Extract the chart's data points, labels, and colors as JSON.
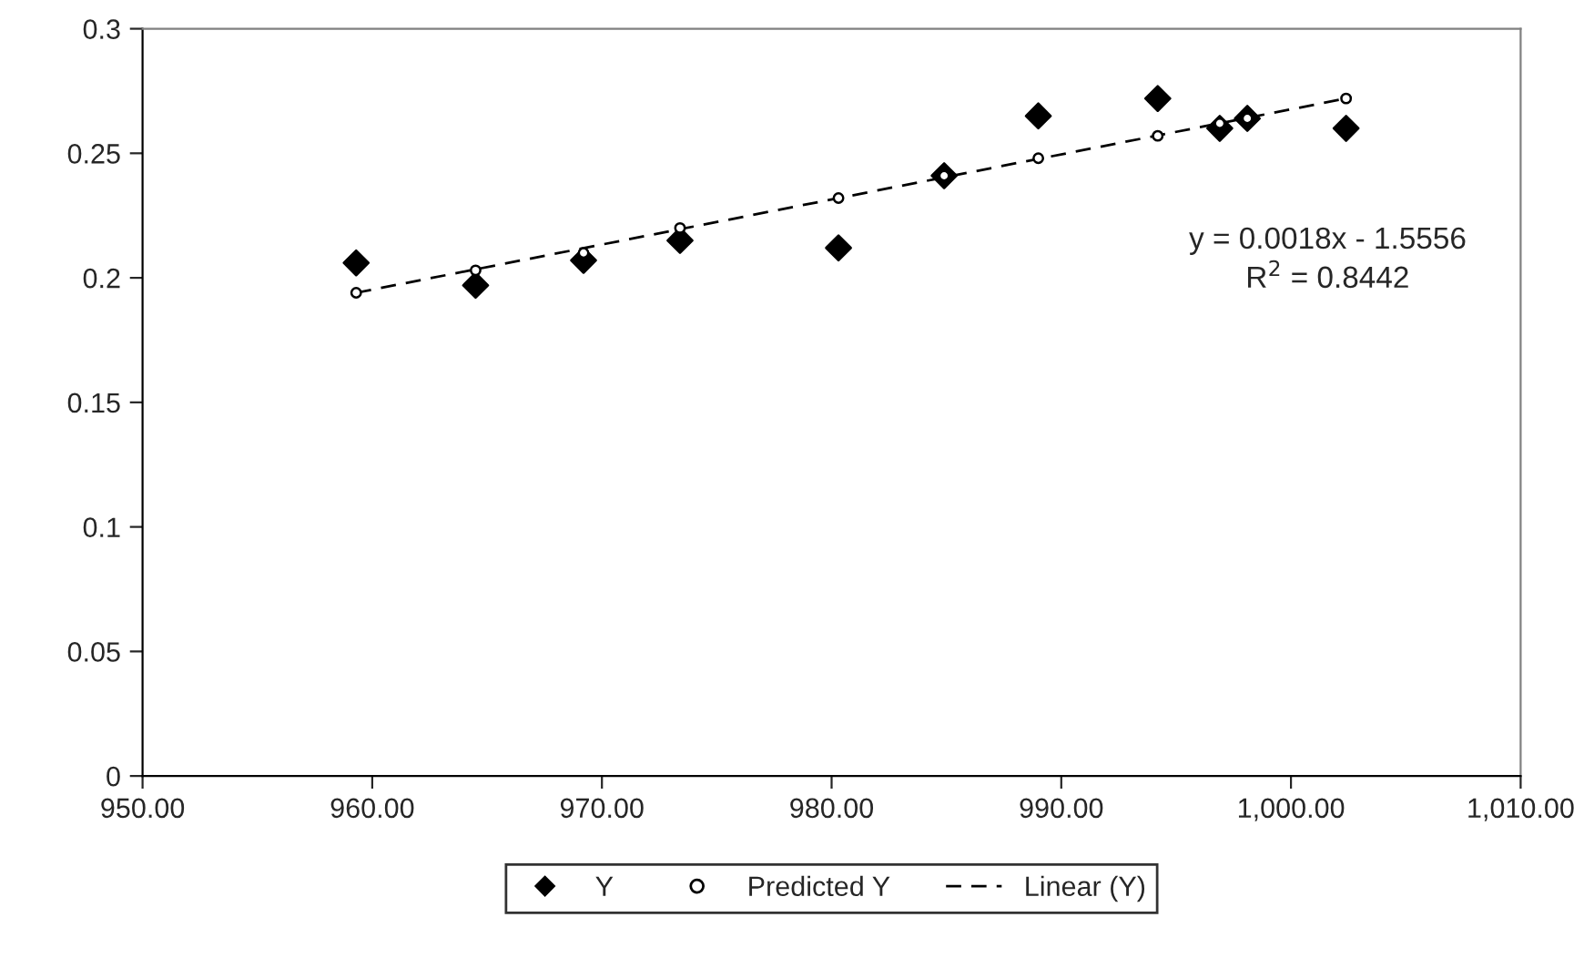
{
  "chart_data": {
    "type": "scatter",
    "x": [
      959.3,
      964.5,
      969.2,
      973.4,
      980.3,
      984.9,
      989.0,
      994.2,
      996.9,
      998.1,
      1002.4
    ],
    "series": [
      {
        "name": "Y",
        "color": "#000000",
        "marker": "diamond",
        "values": [
          0.206,
          0.197,
          0.207,
          0.215,
          0.212,
          0.241,
          0.265,
          0.272,
          0.26,
          0.264,
          0.26
        ]
      },
      {
        "name": "Predicted Y",
        "color": "#000000",
        "marker": "circle",
        "values": [
          0.194,
          0.203,
          0.21,
          0.22,
          0.232,
          0.241,
          0.248,
          0.257,
          0.262,
          0.264,
          0.272
        ]
      },
      {
        "name": "Linear (Y)",
        "type": "line",
        "color": "#000000",
        "line_style": "dashed",
        "marker": "none",
        "x": [
          959.3,
          1002.4
        ],
        "values": [
          0.194,
          0.272
        ]
      }
    ],
    "xlim": [
      950,
      1010
    ],
    "xticks": [
      {
        "value": 950,
        "label": "950.00"
      },
      {
        "value": 960,
        "label": "960.00"
      },
      {
        "value": 970,
        "label": "970.00"
      },
      {
        "value": 980,
        "label": "980.00"
      },
      {
        "value": 990,
        "label": "990.00"
      },
      {
        "value": 1000,
        "label": "1,000.00"
      },
      {
        "value": 1010,
        "label": "1,010.00"
      }
    ],
    "ylim": [
      0,
      0.3
    ],
    "yticks": [
      0,
      0.05,
      0.1,
      0.15,
      0.2,
      0.25,
      0.3
    ],
    "annotations": [
      "y = 0.0018x - 1.5556\nR$^{2}$ = 0.8442"
    ],
    "grid": false,
    "legend": "bottom"
  }
}
